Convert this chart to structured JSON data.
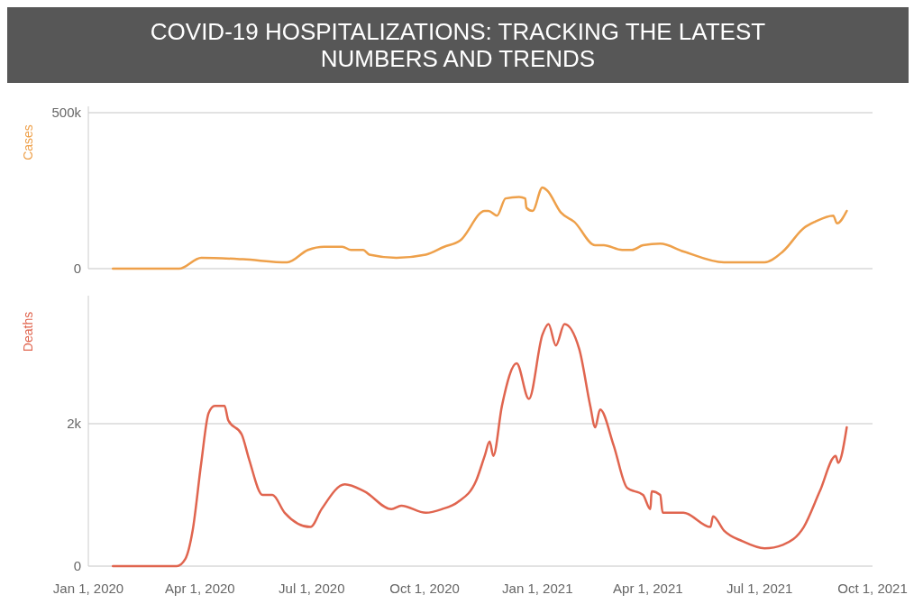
{
  "chart_data": [
    {
      "type": "line",
      "title": "COVID-19 HOSPITALIZATIONS: TRACKING THE LATEST NUMBERS AND TRENDS",
      "ylabel": "Cases",
      "xlim": [
        "2020-01-01",
        "2021-10-01"
      ],
      "ylim": [
        0,
        520000
      ],
      "yticks": [
        0,
        {
          "value": 500000,
          "label": "500k"
        }
      ],
      "grid": "y",
      "tick_labels": "y",
      "series": [
        {
          "color": "#eea04a",
          "x": [
            "2020-01-21",
            "2020-03-15",
            "2020-04-02",
            "2020-05-06",
            "2020-06-11",
            "2020-06-28",
            "2020-07-11",
            "2020-07-26",
            "2020-08-02",
            "2020-08-12",
            "2020-08-17",
            "2020-09-08",
            "2020-10-02",
            "2020-10-17",
            "2020-10-30",
            "2020-11-19",
            "2020-11-22",
            "2020-11-29",
            "2020-12-06",
            "2020-12-17",
            "2020-12-22",
            "2020-12-23",
            "2020-12-28",
            "2021-01-05",
            "2021-01-09",
            "2021-01-20",
            "2021-01-31",
            "2021-02-17",
            "2021-02-24",
            "2021-03-11",
            "2021-03-19",
            "2021-03-28",
            "2021-04-11",
            "2021-04-30",
            "2021-06-02",
            "2021-07-05",
            "2021-07-20",
            "2021-08-06",
            "2021-08-15",
            "2021-08-30",
            "2021-09-02",
            "2021-09-10"
          ],
          "values": [
            0,
            0,
            35000,
            30000,
            20000,
            60000,
            70000,
            70000,
            60000,
            60000,
            45000,
            35000,
            45000,
            70000,
            90000,
            185000,
            185000,
            170000,
            225000,
            230000,
            225000,
            195000,
            185000,
            260000,
            250000,
            180000,
            150000,
            75000,
            75000,
            60000,
            60000,
            75000,
            80000,
            55000,
            20000,
            20000,
            55000,
            130000,
            150000,
            170000,
            145000,
            185000
          ]
        }
      ]
    },
    {
      "type": "line",
      "ylabel": "Deaths",
      "xlim": [
        "2020-01-01",
        "2021-10-01"
      ],
      "ylim": [
        0,
        3800
      ],
      "yticks": [
        0,
        {
          "value": 2000,
          "label": "2k"
        }
      ],
      "grid": "y",
      "xticks": [
        {
          "value": "2020-01-01",
          "label": "Jan 1, 2020"
        },
        {
          "value": "2020-04-01",
          "label": "Apr 1, 2020"
        },
        {
          "value": "2020-07-01",
          "label": "Jul 1, 2020"
        },
        {
          "value": "2020-10-01",
          "label": "Oct 1, 2020"
        },
        {
          "value": "2021-01-01",
          "label": "Jan 1, 2021"
        },
        {
          "value": "2021-04-01",
          "label": "Apr 1, 2021"
        },
        {
          "value": "2021-07-01",
          "label": "Jul 1, 2021"
        },
        {
          "value": "2021-10-01",
          "label": "Oct 1, 2021"
        }
      ],
      "series": [
        {
          "color": "#e0654f",
          "x": [
            "2020-01-21",
            "2020-03-13",
            "2020-03-20",
            "2020-03-26",
            "2020-04-02",
            "2020-04-08",
            "2020-04-13",
            "2020-04-21",
            "2020-04-24",
            "2020-05-05",
            "2020-05-11",
            "2020-05-22",
            "2020-05-30",
            "2020-06-09",
            "2020-06-30",
            "2020-07-09",
            "2020-07-28",
            "2020-08-13",
            "2020-09-04",
            "2020-09-12",
            "2020-10-02",
            "2020-10-15",
            "2020-10-28",
            "2020-11-12",
            "2020-11-19",
            "2020-11-23",
            "2020-11-26",
            "2020-12-03",
            "2020-12-15",
            "2020-12-25",
            "2021-01-05",
            "2021-01-10",
            "2021-01-16",
            "2021-01-23",
            "2021-02-04",
            "2021-02-13",
            "2021-02-17",
            "2021-02-21",
            "2021-03-04",
            "2021-03-15",
            "2021-03-28",
            "2021-04-03",
            "2021-04-04",
            "2021-04-11",
            "2021-04-13",
            "2021-04-30",
            "2021-05-22",
            "2021-05-24",
            "2021-06-02",
            "2021-06-17",
            "2021-07-05",
            "2021-07-20",
            "2021-08-06",
            "2021-08-19",
            "2021-09-01",
            "2021-09-03",
            "2021-09-10"
          ],
          "values": [
            0,
            0,
            100,
            500,
            1450,
            2150,
            2250,
            2250,
            2050,
            1850,
            1500,
            1000,
            1000,
            750,
            550,
            800,
            1150,
            1050,
            800,
            850,
            750,
            800,
            900,
            1200,
            1550,
            1750,
            1550,
            2250,
            2850,
            2350,
            3250,
            3400,
            3100,
            3400,
            3050,
            2250,
            1950,
            2200,
            1700,
            1100,
            1000,
            800,
            1050,
            1000,
            750,
            750,
            550,
            700,
            500,
            350,
            250,
            300,
            550,
            1050,
            1550,
            1450,
            1950
          ]
        }
      ]
    }
  ]
}
